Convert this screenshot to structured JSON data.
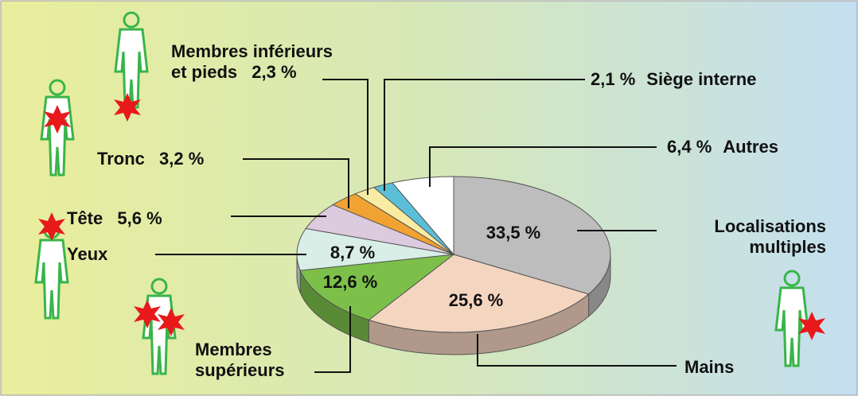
{
  "chart_data": {
    "type": "pie",
    "categories": [
      "Localisations multiples",
      "Mains",
      "Membres supérieurs",
      "Yeux",
      "Tête",
      "Tronc",
      "Membres inférieurs et pieds",
      "Siège interne",
      "Autres"
    ],
    "values": [
      33.5,
      25.6,
      12.6,
      8.7,
      5.6,
      3.2,
      2.3,
      2.1,
      6.4
    ],
    "value_labels": [
      "33,5 %",
      "25,6 %",
      "12,6 %",
      "8,7 %",
      "5,6 %",
      "3,2 %",
      "2,3 %",
      "2,1 %",
      "6,4 %"
    ],
    "colors": [
      "#bdbdbd",
      "#f4d5c0",
      "#7cc04a",
      "#d8eee6",
      "#dccbdf",
      "#f0a232",
      "#f7eca2",
      "#5bbfd8",
      "#ffffff"
    ]
  }
}
